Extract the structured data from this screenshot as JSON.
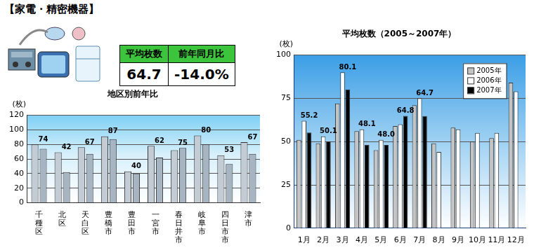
{
  "header": {
    "title": "【家電・精密機器】"
  },
  "summary": {
    "columns": [
      "平均枚数",
      "前年同月比"
    ],
    "values": [
      "64.7",
      "-14.0%"
    ]
  },
  "chart_data": [
    {
      "type": "bar",
      "title": "地区別前年比",
      "y_label": "(枚)",
      "categories": [
        "千種区",
        "北区",
        "天白区",
        "豊橋市",
        "豊田市",
        "一宮市",
        "春日井市",
        "岐阜市",
        "四日市市",
        "津市"
      ],
      "series": [
        {
          "color": "#c3ccd5",
          "values": [
            80,
            69,
            76,
            91,
            43,
            78,
            72,
            92,
            65,
            83
          ]
        },
        {
          "color": "#a7b4c1",
          "values": [
            74,
            42,
            67,
            87,
            40,
            62,
            75,
            80,
            53,
            67
          ],
          "data_labels": true
        }
      ],
      "ylim": [
        0,
        120
      ],
      "yticks": [
        0,
        20,
        40,
        60,
        80,
        100,
        120
      ],
      "grid": true
    },
    {
      "type": "bar",
      "title": "平均枚数（2005～2007年）",
      "y_label": "(枚)",
      "categories": [
        "1月",
        "2月",
        "3月",
        "4月",
        "5月",
        "6月",
        "7月",
        "8月",
        "9月",
        "10月",
        "11月",
        "12月"
      ],
      "series": [
        {
          "name": "2005年",
          "color": "#c4c4c4",
          "values": [
            51,
            49,
            72,
            56,
            45,
            59,
            71,
            49,
            58,
            50,
            52,
            84
          ]
        },
        {
          "name": "2006年",
          "color": "#ffffff",
          "values": [
            62,
            53,
            90,
            57,
            51,
            60,
            75,
            44,
            57,
            55,
            55,
            79
          ]
        },
        {
          "name": "2007年",
          "color": "#000000",
          "values": [
            55.2,
            50.1,
            80.1,
            48.1,
            48.0,
            64.8,
            64.7,
            null,
            null,
            null,
            null,
            null
          ],
          "value_labels": [
            "55.2",
            "50.1",
            "80.1",
            "48.1",
            "48.0",
            "64.8",
            "64.7",
            null,
            null,
            null,
            null,
            null
          ],
          "data_labels": true
        }
      ],
      "ylim": [
        0,
        100
      ],
      "yticks": [
        0,
        25,
        50,
        75,
        100
      ],
      "grid": true,
      "legend": "upper right"
    }
  ]
}
